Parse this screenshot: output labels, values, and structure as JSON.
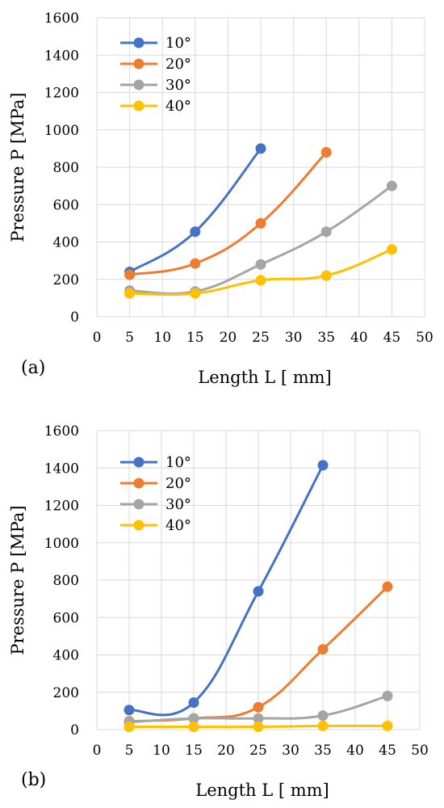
{
  "chart_data": [
    {
      "type": "line",
      "panel_label": "(a)",
      "xlabel": "Length L [ mm]",
      "ylabel": "Pressure P [MPa]",
      "xlim": [
        0,
        50
      ],
      "ylim": [
        0,
        1600
      ],
      "xticks": [
        "0",
        "5",
        "10",
        "15",
        "20",
        "25",
        "30",
        "35",
        "40",
        "45",
        "50"
      ],
      "yticks": [
        "0",
        "200",
        "400",
        "600",
        "800",
        "1000",
        "1200",
        "1400",
        "1600"
      ],
      "grid": true,
      "legend": "top-left",
      "series": [
        {
          "name": "10°",
          "color": "#4472C4",
          "x": [
            5,
            15,
            25
          ],
          "y": [
            240,
            455,
            900
          ]
        },
        {
          "name": "20°",
          "color": "#ED7D31",
          "x": [
            5,
            15,
            25,
            35
          ],
          "y": [
            225,
            285,
            500,
            880
          ]
        },
        {
          "name": "30°",
          "color": "#A5A5A5",
          "x": [
            5,
            15,
            25,
            35,
            45
          ],
          "y": [
            140,
            135,
            280,
            455,
            700
          ]
        },
        {
          "name": "40°",
          "color": "#FFC000",
          "x": [
            5,
            15,
            25,
            35,
            45
          ],
          "y": [
            125,
            125,
            195,
            220,
            360
          ]
        }
      ]
    },
    {
      "type": "line",
      "panel_label": "(b)",
      "xlabel": "Length L [ mm]",
      "ylabel": "Pressure P [MPa]",
      "xlim": [
        0,
        50
      ],
      "ylim": [
        0,
        1600
      ],
      "xticks": [
        "0",
        "5",
        "10",
        "15",
        "20",
        "25",
        "30",
        "35",
        "40",
        "45",
        "50"
      ],
      "yticks": [
        "0",
        "200",
        "400",
        "600",
        "800",
        "1000",
        "1200",
        "1400",
        "1600"
      ],
      "grid": true,
      "legend": "top-left",
      "series": [
        {
          "name": "10°",
          "color": "#4472C4",
          "x": [
            5,
            15,
            25,
            35
          ],
          "y": [
            105,
            145,
            740,
            1415
          ]
        },
        {
          "name": "20°",
          "color": "#ED7D31",
          "x": [
            5,
            15,
            25,
            35,
            45
          ],
          "y": [
            45,
            60,
            120,
            430,
            765
          ]
        },
        {
          "name": "30°",
          "color": "#A5A5A5",
          "x": [
            5,
            15,
            25,
            35,
            45
          ],
          "y": [
            40,
            60,
            60,
            75,
            180
          ]
        },
        {
          "name": "40°",
          "color": "#FFC000",
          "x": [
            5,
            15,
            25,
            35,
            45
          ],
          "y": [
            15,
            15,
            15,
            20,
            20
          ]
        }
      ]
    }
  ]
}
